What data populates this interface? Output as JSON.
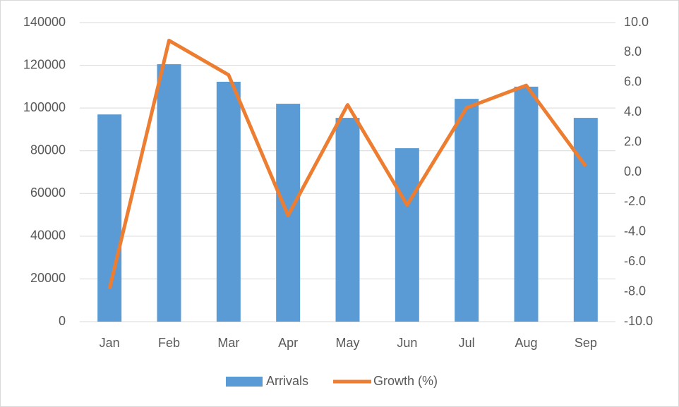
{
  "chart_data": {
    "type": "bar",
    "categories": [
      "Jan",
      "Feb",
      "Mar",
      "Apr",
      "May",
      "Jun",
      "Jul",
      "Aug",
      "Sep"
    ],
    "series": [
      {
        "name": "Arrivals",
        "type": "bar",
        "color": "#5b9bd5",
        "values": [
          97000,
          120500,
          112300,
          102000,
          95400,
          81200,
          104300,
          110000,
          95400
        ]
      },
      {
        "name": "Growth (%)",
        "type": "line",
        "axis": "y2",
        "color": "#ed7d31",
        "values": [
          -7.8,
          8.8,
          6.5,
          -2.9,
          4.5,
          -2.2,
          4.3,
          5.8,
          0.4
        ]
      }
    ],
    "ylim": [
      0,
      140000
    ],
    "yticks": [
      0,
      20000,
      40000,
      60000,
      80000,
      100000,
      120000,
      140000
    ],
    "y2lim": [
      -10,
      10
    ],
    "y2ticks": [
      {
        "value": -10,
        "label": "-10.0"
      },
      {
        "value": -8,
        "label": "-8.0"
      },
      {
        "value": -6,
        "label": "-6.0"
      },
      {
        "value": -4,
        "label": "-4.0"
      },
      {
        "value": -2,
        "label": "-2.0"
      },
      {
        "value": 0,
        "label": "0.0"
      },
      {
        "value": 2,
        "label": "2.0"
      },
      {
        "value": 4,
        "label": "4.0"
      },
      {
        "value": 6,
        "label": "6.0"
      },
      {
        "value": 8,
        "label": "8.0"
      },
      {
        "value": 10,
        "label": "10.0"
      }
    ],
    "grid": true,
    "legend": "bottom"
  }
}
